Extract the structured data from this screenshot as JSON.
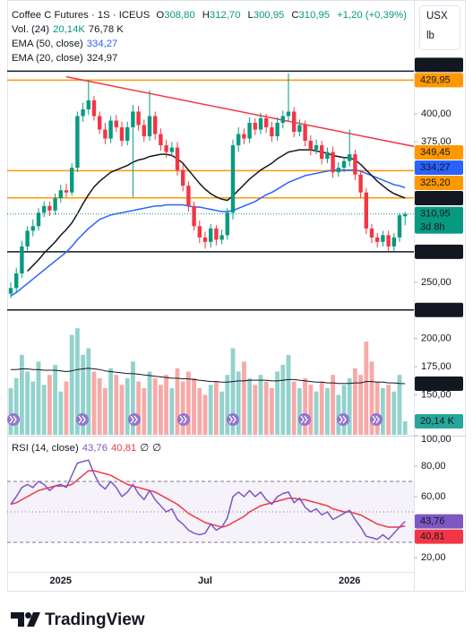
{
  "chart_data": {
    "type": "candlestick",
    "title": "Coffee C Futures · 1S · ICEUS",
    "ohlc_legend": [
      {
        "key": "O",
        "value": "308,80"
      },
      {
        "key": "H",
        "value": "312,70"
      },
      {
        "key": "L",
        "value": "300,95"
      },
      {
        "key": "C",
        "value": "310,95"
      }
    ],
    "change": "+1,20 (+0,39%)",
    "currency": "USX",
    "unit": "lb",
    "categories": [
      null,
      null,
      null,
      null,
      null,
      null,
      null,
      null,
      null,
      "2025",
      null,
      null,
      null,
      null,
      null,
      null,
      null,
      null,
      null,
      null,
      null,
      null,
      null,
      null,
      null,
      null,
      null,
      null,
      null,
      null,
      null,
      null,
      null,
      null,
      null,
      "Jul",
      null,
      null,
      null,
      null,
      null,
      null,
      null,
      null,
      null,
      null,
      null,
      null,
      null,
      null,
      null,
      null,
      null,
      null,
      null,
      null,
      null,
      null,
      null,
      null,
      null,
      "2026",
      null,
      null,
      null,
      null,
      null,
      null,
      null,
      null,
      null,
      null
    ],
    "open": [
      240,
      245,
      258,
      282,
      296,
      300,
      312,
      318,
      314,
      325,
      332,
      330,
      352,
      398,
      404,
      412,
      398,
      386,
      378,
      394,
      388,
      376,
      388,
      402,
      390,
      380,
      398,
      382,
      372,
      366,
      370,
      350,
      336,
      318,
      300,
      290,
      286,
      298,
      288,
      292,
      312,
      372,
      382,
      378,
      392,
      386,
      396,
      388,
      380,
      392,
      398,
      402,
      384,
      390,
      376,
      368,
      372,
      360,
      366,
      348,
      352,
      358,
      364,
      346,
      330,
      298,
      290,
      286,
      292,
      282,
      290,
      308.8
    ],
    "high": [
      250,
      263,
      287,
      300,
      306,
      316,
      322,
      322,
      329,
      337,
      338,
      356,
      402,
      410,
      430,
      416,
      402,
      392,
      398,
      399,
      393,
      393,
      408,
      407,
      395,
      421,
      402,
      387,
      377,
      375,
      375,
      355,
      340,
      322,
      305,
      295,
      302,
      301,
      297,
      316,
      377,
      388,
      387,
      397,
      396,
      401,
      400,
      393,
      397,
      403,
      436,
      406,
      395,
      394,
      381,
      377,
      376,
      370,
      371,
      357,
      362,
      386,
      368,
      350,
      334,
      302,
      294,
      296,
      296,
      294,
      312,
      312.7
    ],
    "low": [
      236,
      241,
      254,
      278,
      291,
      296,
      308,
      309,
      310,
      321,
      326,
      327,
      348,
      393,
      399,
      394,
      382,
      373,
      374,
      384,
      371,
      372,
      326,
      385,
      375,
      376,
      377,
      367,
      361,
      362,
      345,
      331,
      313,
      296,
      285,
      280,
      281,
      283,
      284,
      288,
      306,
      366,
      373,
      374,
      381,
      382,
      383,
      375,
      376,
      387,
      394,
      379,
      380,
      371,
      363,
      364,
      355,
      356,
      343,
      344,
      348,
      353,
      341,
      325,
      293,
      285,
      281,
      282,
      278,
      278,
      286,
      300.95
    ],
    "close": [
      245,
      258,
      282,
      296,
      300,
      312,
      318,
      314,
      325,
      332,
      330,
      352,
      398,
      404,
      412,
      398,
      386,
      378,
      394,
      388,
      376,
      388,
      402,
      390,
      380,
      398,
      382,
      372,
      366,
      370,
      350,
      336,
      318,
      300,
      290,
      286,
      298,
      288,
      292,
      312,
      372,
      382,
      378,
      392,
      386,
      396,
      388,
      380,
      392,
      398,
      402,
      384,
      390,
      376,
      368,
      372,
      360,
      366,
      348,
      352,
      358,
      364,
      346,
      330,
      298,
      290,
      286,
      292,
      282,
      290,
      309.75,
      310.95
    ],
    "up_color": "#089981",
    "down_color": "#f23645",
    "last_label": "310,95",
    "countdown": "3d 8h",
    "ylim": [
      114.4,
      498.1
    ],
    "yticks": [
      {
        "value": 400,
        "label": "400,00"
      },
      {
        "value": 375,
        "label": "375,00"
      },
      {
        "value": 250,
        "label": "250,00"
      },
      {
        "value": 200,
        "label": "200,00"
      },
      {
        "value": 175,
        "label": "175,00"
      },
      {
        "value": 150,
        "label": "150,00"
      }
    ],
    "overlays": [
      {
        "name": "EMA (50, close)",
        "color": "#2962ff",
        "label": "334,27",
        "values": [
          238,
          241,
          245,
          249,
          253,
          257,
          261,
          265,
          269,
          273,
          277,
          282,
          288,
          293,
          298,
          302,
          306,
          308,
          310,
          311,
          312,
          313,
          314,
          315,
          316,
          317,
          318,
          318,
          319,
          319,
          319,
          319,
          318,
          317,
          317,
          316,
          315,
          314,
          313,
          313,
          314,
          316,
          318,
          320,
          322,
          325,
          328,
          330,
          333,
          336,
          339,
          341,
          343,
          345,
          346,
          347,
          348,
          349,
          350,
          350,
          350,
          350,
          350,
          349,
          347,
          345,
          343,
          341,
          339,
          337,
          336,
          334.27
        ]
      },
      {
        "name": "EMA (20, close)",
        "color": "#131722",
        "label": "324,97",
        "values": [
          null,
          null,
          null,
          260,
          265,
          270,
          276,
          281,
          286,
          292,
          297,
          303,
          311,
          320,
          328,
          335,
          340,
          344,
          348,
          350,
          352,
          354,
          357,
          359,
          360,
          362,
          363,
          364,
          364,
          363,
          360,
          356,
          350,
          344,
          338,
          333,
          329,
          326,
          324,
          323,
          327,
          332,
          337,
          342,
          346,
          350,
          353,
          356,
          360,
          363,
          366,
          367,
          368,
          368,
          368,
          367,
          366,
          365,
          363,
          362,
          361,
          361,
          359,
          355,
          350,
          345,
          340,
          336,
          332,
          329,
          327,
          324.97
        ]
      }
    ],
    "levels": [
      {
        "value": 437.95,
        "label": "437,95",
        "color": "#131722"
      },
      {
        "value": 429.95,
        "label": "429,95",
        "color": "#ff9800"
      },
      {
        "value": 349.45,
        "label": "349,45",
        "color": "#ff9800"
      },
      {
        "value": 325.2,
        "label": "325,20",
        "color": "#ff9800"
      },
      {
        "value": 277.25,
        "label": "277,25",
        "color": "#131722"
      },
      {
        "value": 225.5,
        "label": "225,50",
        "color": "#131722"
      }
    ],
    "trendline": {
      "color": "#f23645",
      "x": [
        10,
        72.6
      ],
      "values": [
        433,
        371
      ]
    },
    "volume": {
      "name": "Vol. (24)",
      "legend_label": "20,14K",
      "axis_label": "20,14 K",
      "ma_label": "76,78 K",
      "ylim": [
        0,
        161.6
      ],
      "up_color": "#92d2cc",
      "down_color": "#f7a9a7",
      "values": [
        70,
        85,
        120,
        95,
        80,
        110,
        75,
        90,
        105,
        65,
        80,
        150,
        160,
        120,
        130,
        95,
        85,
        70,
        100,
        90,
        75,
        85,
        110,
        80,
        70,
        95,
        85,
        75,
        90,
        70,
        100,
        80,
        95,
        85,
        70,
        60,
        75,
        80,
        65,
        90,
        130,
        95,
        110,
        85,
        75,
        90,
        80,
        70,
        95,
        105,
        120,
        80,
        70,
        85,
        75,
        65,
        80,
        70,
        90,
        60,
        75,
        85,
        100,
        90,
        140,
        110,
        80,
        70,
        75,
        65,
        90,
        20.14
      ],
      "ma_values": [
        98,
        98,
        99,
        99,
        98,
        98,
        97,
        97,
        97,
        96,
        95,
        96,
        98,
        99,
        100,
        99,
        98,
        96,
        95,
        94,
        93,
        92,
        92,
        91,
        90,
        89,
        88,
        87,
        86,
        85,
        85,
        84,
        84,
        83,
        82,
        81,
        80,
        80,
        79,
        79,
        80,
        81,
        81,
        82,
        82,
        82,
        82,
        81,
        81,
        82,
        83,
        83,
        82,
        81,
        80,
        79,
        79,
        78,
        78,
        77,
        77,
        77,
        78,
        78,
        80,
        80,
        79,
        79,
        78,
        78,
        77,
        76.78
      ]
    },
    "rsi": {
      "name": "RSI (14, close)",
      "color": "#7e57c2",
      "label": "43,76",
      "ma_color": "#f23645",
      "ma_label": "40,81",
      "extras": [
        "∅",
        "∅"
      ],
      "ylim": [
        9.4,
        100
      ],
      "yticks": [
        {
          "value": 100,
          "label": "100,00"
        },
        {
          "value": 80,
          "label": "80,00"
        },
        {
          "value": 60,
          "label": "60,00"
        },
        {
          "value": 20,
          "label": "20,00"
        }
      ],
      "bands": [
        70,
        50,
        30
      ],
      "values": [
        55,
        60,
        66,
        68,
        66,
        70,
        68,
        64,
        67,
        68,
        66,
        74,
        82,
        83,
        84,
        75,
        68,
        65,
        70,
        66,
        60,
        63,
        68,
        62,
        58,
        64,
        58,
        54,
        50,
        52,
        45,
        42,
        38,
        36,
        35,
        36,
        42,
        38,
        40,
        46,
        60,
        63,
        60,
        64,
        60,
        63,
        58,
        55,
        60,
        62,
        63,
        56,
        59,
        53,
        50,
        52,
        48,
        50,
        45,
        47,
        49,
        51,
        45,
        40,
        34,
        33,
        32,
        35,
        32,
        36,
        40,
        43.76
      ],
      "ma_values": [
        55,
        56,
        58,
        60,
        62,
        64,
        65,
        66,
        67,
        67,
        67,
        68,
        71,
        74,
        77,
        77,
        76,
        75,
        74,
        72,
        70,
        68,
        67,
        66,
        65,
        64,
        63,
        61,
        59,
        57,
        55,
        52,
        49,
        47,
        45,
        43,
        42,
        41,
        40,
        41,
        43,
        45,
        47,
        50,
        52,
        54,
        55,
        56,
        57,
        58,
        59,
        59,
        58,
        58,
        57,
        56,
        55,
        54,
        52,
        51,
        50,
        50,
        49,
        48,
        46,
        44,
        42,
        41,
        40,
        40,
        40,
        40.81
      ]
    }
  },
  "footer": {
    "brand": "TradingView"
  }
}
